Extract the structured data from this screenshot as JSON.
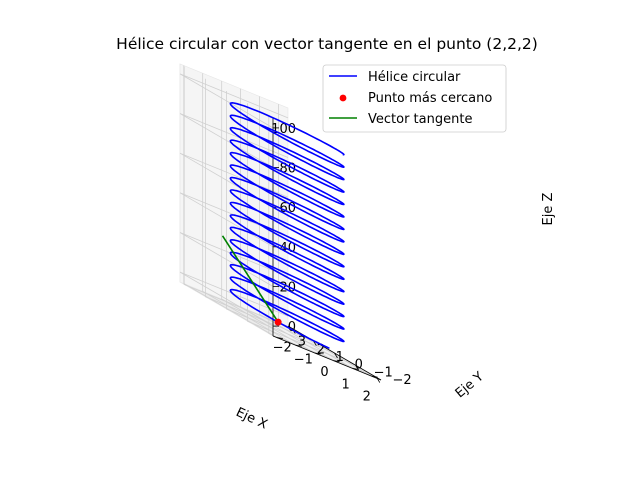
{
  "chart_data": {
    "type": "3d-line",
    "title": "Hélice circular con vector tangente en el punto (2,2,2)",
    "xlabel": "Eje X",
    "ylabel": "Eje Y",
    "zlabel": "Eje Z",
    "xticks": [
      "−2",
      "−1",
      "0",
      "1",
      "2"
    ],
    "yticks": [
      "−2",
      "−1",
      "0",
      "1",
      "2",
      "3"
    ],
    "zticks": [
      "0",
      "20",
      "40",
      "60",
      "80",
      "100"
    ],
    "xlim": [
      -2.2,
      2.2
    ],
    "ylim": [
      -2.5,
      3.2
    ],
    "zlim": [
      -5,
      105
    ],
    "grid": true,
    "legend_position": "top-right",
    "series": [
      {
        "name": "Hélice circular",
        "kind": "line",
        "color": "#0000ff",
        "equation": "x = 2·cos(t), y = 2·sin(t), z = t",
        "radius": 2,
        "t_range": [
          0,
          100
        ]
      },
      {
        "name": "Punto más cercano",
        "kind": "scatter",
        "color": "#ff0000",
        "point": [
          1.08,
          1.68,
          1.0
        ]
      },
      {
        "name": "Vector tangente",
        "kind": "line",
        "color": "#008000",
        "start": [
          1.08,
          1.68,
          1.0
        ],
        "end": [
          -0.6,
          2.74,
          30
        ]
      }
    ]
  }
}
